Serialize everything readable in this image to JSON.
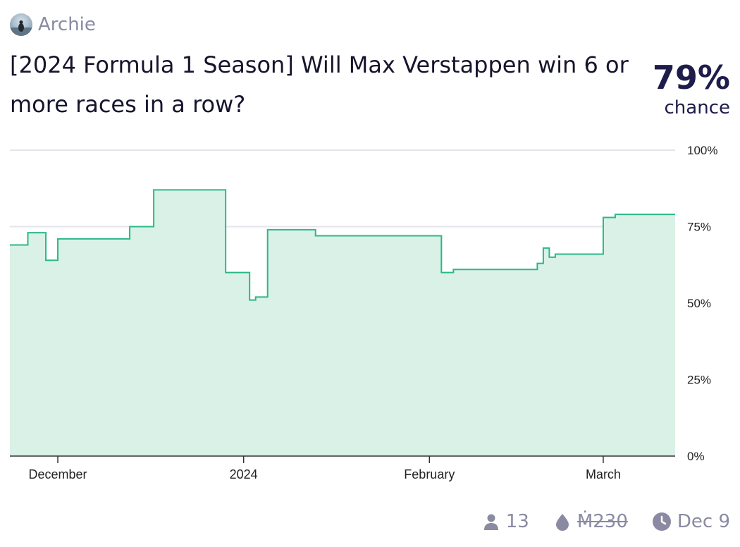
{
  "market": {
    "author": "Archie",
    "title": "[2024 Formula 1 Season] Will Max Verstappen win 6 or more races in a row?",
    "probability": "79%",
    "probability_label": "chance"
  },
  "stats": {
    "traders": "13",
    "volume": "Ṁ230",
    "date": "Dec 9"
  },
  "icons": [
    "user-icon",
    "droplet-icon",
    "clock-icon"
  ],
  "colors": {
    "line": "#2bb88a",
    "fill": "#d9f1e6",
    "grid": "#e4e4ea",
    "text": "#1c1b3a",
    "muted": "#8a8aa3"
  },
  "chart_data": {
    "type": "area",
    "step": true,
    "title": "",
    "xlabel": "",
    "ylabel": "",
    "xlim": [
      "2023-11-23",
      "2024-03-13"
    ],
    "ylim": [
      0,
      100
    ],
    "y_ticks": [
      {
        "value": 100,
        "label": "100%"
      },
      {
        "value": 75,
        "label": "75%"
      },
      {
        "value": 50,
        "label": "50%"
      },
      {
        "value": 25,
        "label": "25%"
      },
      {
        "value": 0,
        "label": "0%"
      }
    ],
    "x_ticks": [
      {
        "value": "2023-12-01",
        "label": "December"
      },
      {
        "value": "2024-01-01",
        "label": "2024"
      },
      {
        "value": "2024-02-01",
        "label": "February"
      },
      {
        "value": "2024-03-01",
        "label": "March"
      }
    ],
    "grid": true,
    "series": [
      {
        "x": [
          "2023-11-23",
          "2023-11-26",
          "2023-11-29",
          "2023-11-30",
          "2023-12-01",
          "2023-12-13",
          "2023-12-17",
          "2023-12-29",
          "2024-01-02",
          "2024-01-03",
          "2024-01-05",
          "2024-01-08",
          "2024-01-13",
          "2024-02-03",
          "2024-02-05",
          "2024-02-18",
          "2024-02-19",
          "2024-02-20",
          "2024-02-21",
          "2024-02-22",
          "2024-03-01",
          "2024-03-03",
          "2024-03-06",
          "2024-03-13"
        ],
        "y": [
          69,
          73,
          64,
          64,
          71,
          75,
          87,
          60,
          51,
          52,
          74,
          74,
          72,
          60,
          61,
          61,
          63,
          68,
          65,
          66,
          78,
          79,
          79,
          79
        ]
      }
    ]
  }
}
